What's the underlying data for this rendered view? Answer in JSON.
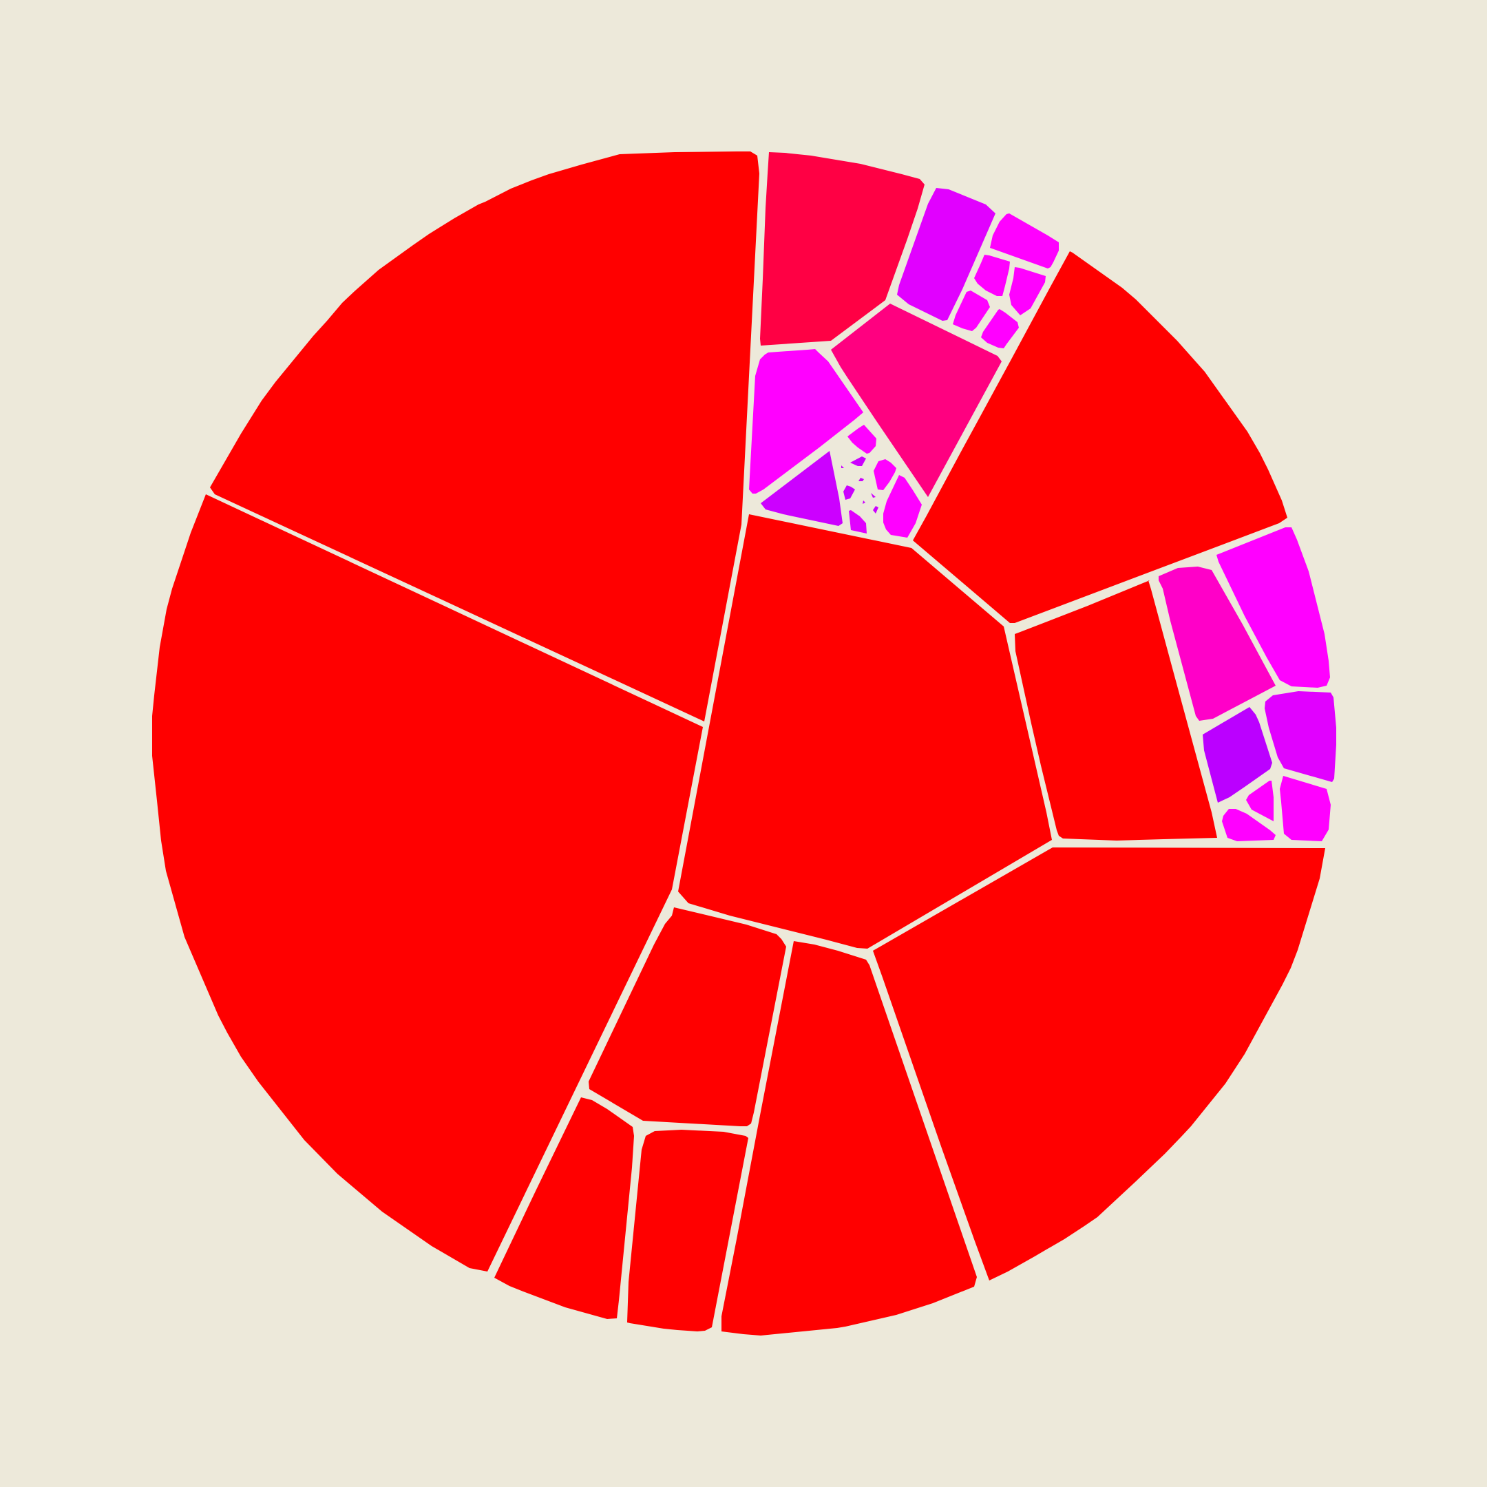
{
  "diagram": {
    "type": "voronoi-treemap",
    "background_color": "#ede9da",
    "palette": {
      "red": "#ff0000",
      "crimson": "#ff0044",
      "deep_pink": "#ff0080",
      "hot_pink": "#ff00c8",
      "magenta": "#ff00ff",
      "violet": "#e100ff",
      "purple": "#cc00ff",
      "indigo_violet": "#bb00ff"
    },
    "cells": [
      {
        "id": "large-top-left",
        "color": "#ff0000"
      },
      {
        "id": "large-left",
        "color": "#ff0000"
      },
      {
        "id": "center",
        "color": "#ff0000"
      },
      {
        "id": "right-upper",
        "color": "#ff0000"
      },
      {
        "id": "right-middle",
        "color": "#ff0000"
      },
      {
        "id": "bottom-right",
        "color": "#ff0000"
      },
      {
        "id": "bottom-center",
        "color": "#ff0000"
      },
      {
        "id": "bottom-mid-left",
        "color": "#ff0000"
      },
      {
        "id": "bottom-small-left",
        "color": "#ff0000"
      },
      {
        "id": "bottom-narrow",
        "color": "#ff0000"
      },
      {
        "id": "top-crimson",
        "color": "#ff0044"
      },
      {
        "id": "top-deep-pink",
        "color": "#ff0080"
      },
      {
        "id": "top-magenta-left",
        "color": "#ff00ff"
      },
      {
        "id": "top-violet",
        "color": "#e100ff"
      },
      {
        "id": "top-purple",
        "color": "#cc00ff"
      },
      {
        "id": "right-hot-pink",
        "color": "#ff00c8"
      },
      {
        "id": "right-magenta",
        "color": "#ff00ff"
      },
      {
        "id": "right-violet",
        "color": "#e100ff"
      },
      {
        "id": "right-indigo",
        "color": "#bb00ff"
      }
    ]
  }
}
